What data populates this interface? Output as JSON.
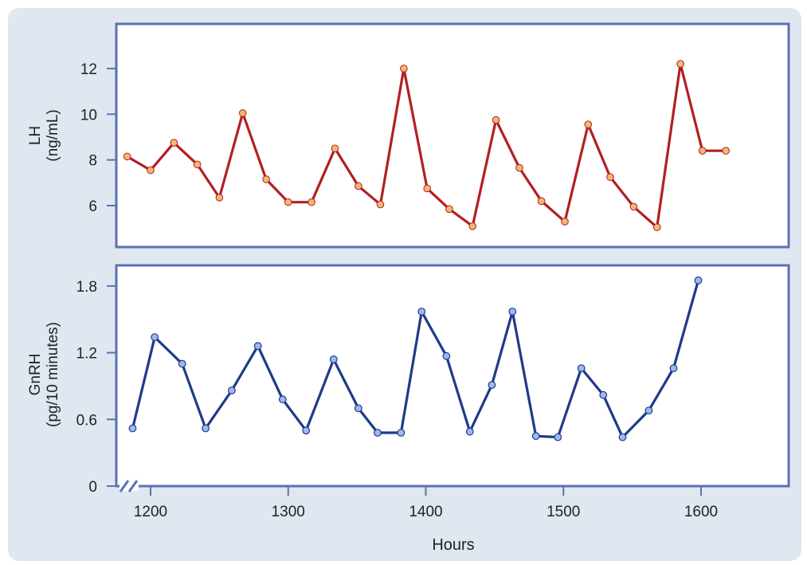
{
  "colors": {
    "background": "#dfe7f1",
    "panel_fill": "#ffffff",
    "frame": "#5b72b3",
    "lh_line": "#b21f24",
    "lh_marker": "#f2b872",
    "gnrh_line": "#1f3a8a",
    "gnrh_marker": "#9db8ec"
  },
  "chart_data": [
    {
      "type": "line",
      "title": "",
      "ylabel_line1": "LH",
      "ylabel_line2": "(ng/mL)",
      "xlabel": "",
      "xlim": [
        1180,
        1660
      ],
      "ylim": [
        4.2,
        14.2
      ],
      "yticks": [
        6,
        8,
        10,
        12
      ],
      "ytick_labels": [
        "6",
        "8",
        "10",
        "12"
      ],
      "grid": false,
      "series": [
        {
          "x": [
            1183,
            1200,
            1217,
            1234,
            1250,
            1267,
            1284,
            1300,
            1317,
            1334,
            1351,
            1367,
            1384,
            1401,
            1417,
            1434,
            1451,
            1468,
            1484,
            1501,
            1518,
            1534,
            1551,
            1568,
            1585,
            1601,
            1618
          ],
          "y": [
            8.15,
            7.55,
            8.75,
            7.8,
            6.35,
            10.05,
            7.15,
            6.15,
            6.15,
            8.5,
            6.85,
            6.05,
            12.0,
            6.75,
            5.85,
            5.1,
            9.75,
            7.65,
            6.2,
            5.3,
            9.55,
            7.25,
            5.95,
            5.05,
            12.2,
            8.4,
            8.4
          ]
        }
      ]
    },
    {
      "type": "line",
      "title": "",
      "ylabel_line1": "GnRH",
      "ylabel_line2": "(pg/10 minutes)",
      "xlabel": "Hours",
      "xlim": [
        1180,
        1660
      ],
      "ylim": [
        0,
        1.8
      ],
      "yticks": [
        0,
        0.6,
        1.2,
        1.8
      ],
      "ytick_labels": [
        "0",
        "0.6",
        "1.2",
        "1.8"
      ],
      "xticks": [
        1200,
        1300,
        1400,
        1500,
        1600
      ],
      "xtick_labels": [
        "1200",
        "1300",
        "1400",
        "1500",
        "1600"
      ],
      "axis_break": true,
      "grid": false,
      "series": [
        {
          "x": [
            1187,
            1203,
            1223,
            1240,
            1259,
            1278,
            1296,
            1313,
            1333,
            1351,
            1365,
            1382,
            1397,
            1415,
            1432,
            1448,
            1463,
            1480,
            1496,
            1513,
            1529,
            1543,
            1562,
            1580,
            1598
          ],
          "y": [
            0.52,
            1.34,
            1.1,
            0.52,
            0.86,
            1.26,
            0.78,
            0.5,
            1.14,
            0.7,
            0.48,
            0.48,
            1.57,
            1.17,
            0.49,
            0.91,
            1.57,
            0.45,
            0.44,
            1.06,
            0.82,
            0.44,
            0.68,
            1.06,
            1.85
          ]
        }
      ]
    }
  ]
}
